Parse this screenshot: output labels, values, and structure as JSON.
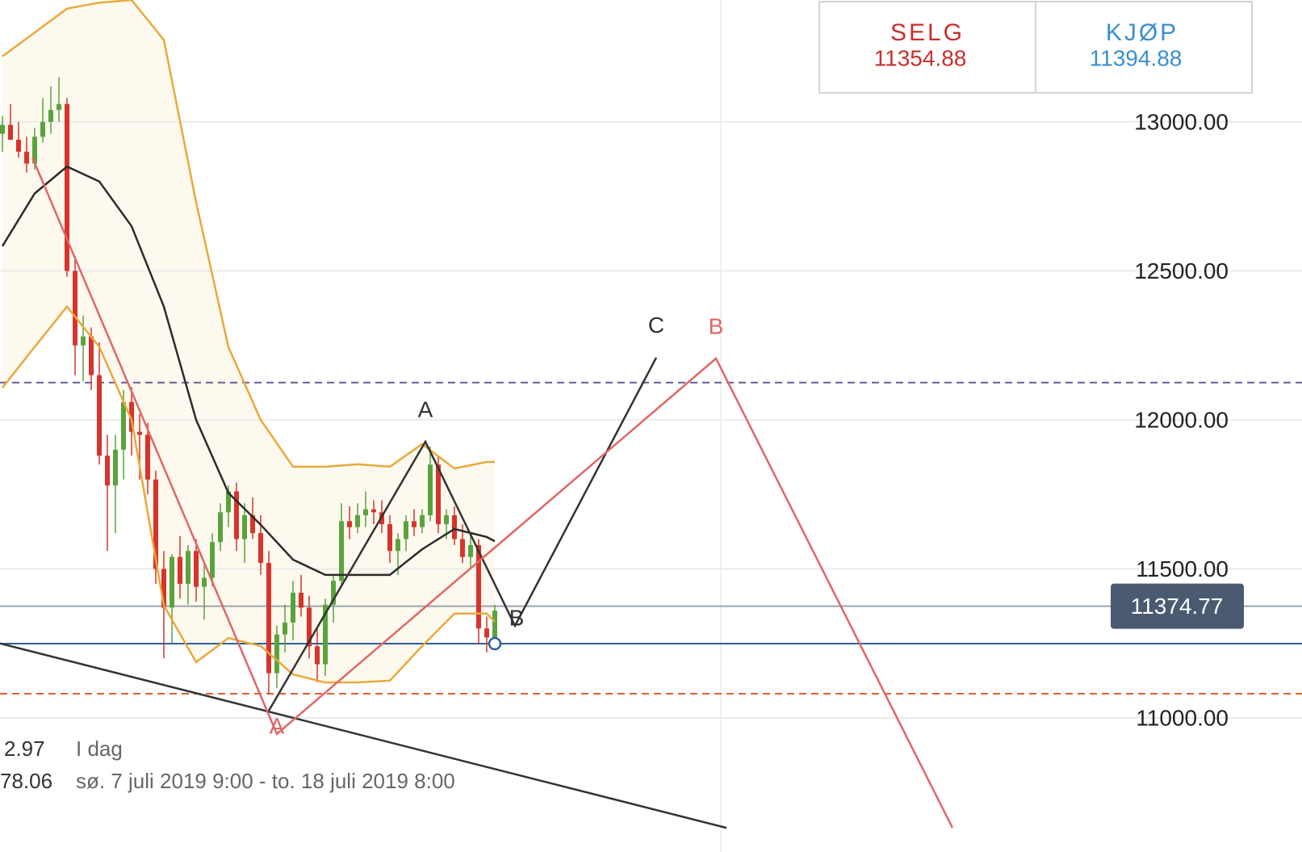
{
  "chart_data": {
    "type": "candlestick",
    "ylim": [
      10550,
      13409
    ],
    "yticks": [
      {
        "value": 13000,
        "label": "13000.00"
      },
      {
        "value": 12500,
        "label": "12500.00"
      },
      {
        "value": 12000,
        "label": "12000.00"
      },
      {
        "value": 11500,
        "label": "11500.00"
      },
      {
        "value": 11000,
        "label": "11000.00"
      }
    ],
    "grid": true,
    "up_color": "#5aa33c",
    "down_color": "#d6342c",
    "candles": [
      [
        12960,
        13020,
        12900,
        12990
      ],
      [
        12990,
        13060,
        12950,
        12940
      ],
      [
        12940,
        13000,
        12880,
        12900
      ],
      [
        12900,
        12950,
        12830,
        12860
      ],
      [
        12860,
        12980,
        12840,
        12950
      ],
      [
        12950,
        13080,
        12930,
        13000
      ],
      [
        13000,
        13120,
        12960,
        13040
      ],
      [
        13040,
        13150,
        13000,
        13060
      ],
      [
        13060,
        13080,
        12480,
        12500
      ],
      [
        12500,
        12550,
        12150,
        12250
      ],
      [
        12250,
        12350,
        12130,
        12280
      ],
      [
        12280,
        12310,
        12100,
        12150
      ],
      [
        12150,
        12260,
        11850,
        11880
      ],
      [
        11880,
        11950,
        11560,
        11780
      ],
      [
        11780,
        11950,
        11620,
        11900
      ],
      [
        11900,
        12100,
        11800,
        12060
      ],
      [
        12060,
        12110,
        11880,
        11960
      ],
      [
        11960,
        12020,
        11800,
        11950
      ],
      [
        11950,
        11990,
        11750,
        11800
      ],
      [
        11800,
        11830,
        11450,
        11500
      ],
      [
        11500,
        11560,
        11200,
        11370
      ],
      [
        11370,
        11550,
        11250,
        11540
      ],
      [
        11540,
        11610,
        11400,
        11450
      ],
      [
        11450,
        11580,
        11380,
        11560
      ],
      [
        11560,
        11600,
        11390,
        11440
      ],
      [
        11440,
        11520,
        11330,
        11470
      ],
      [
        11470,
        11620,
        11440,
        11590
      ],
      [
        11590,
        11720,
        11560,
        11690
      ],
      [
        11690,
        11780,
        11640,
        11760
      ],
      [
        11760,
        11790,
        11560,
        11600
      ],
      [
        11600,
        11720,
        11520,
        11680
      ],
      [
        11680,
        11740,
        11600,
        11620
      ],
      [
        11620,
        11680,
        11480,
        11520
      ],
      [
        11520,
        11560,
        11080,
        11150
      ],
      [
        11150,
        11310,
        11100,
        11280
      ],
      [
        11280,
        11380,
        11220,
        11320
      ],
      [
        11320,
        11460,
        11260,
        11420
      ],
      [
        11420,
        11480,
        11340,
        11370
      ],
      [
        11370,
        11410,
        11200,
        11240
      ],
      [
        11240,
        11300,
        11120,
        11180
      ],
      [
        11180,
        11400,
        11140,
        11380
      ],
      [
        11380,
        11480,
        11320,
        11460
      ],
      [
        11460,
        11720,
        11440,
        11660
      ],
      [
        11660,
        11710,
        11600,
        11640
      ],
      [
        11640,
        11720,
        11620,
        11680
      ],
      [
        11680,
        11760,
        11640,
        11700
      ],
      [
        11700,
        11730,
        11650,
        11690
      ],
      [
        11690,
        11730,
        11620,
        11650
      ],
      [
        11650,
        11680,
        11520,
        11560
      ],
      [
        11560,
        11620,
        11480,
        11600
      ],
      [
        11600,
        11680,
        11560,
        11660
      ],
      [
        11660,
        11700,
        11610,
        11640
      ],
      [
        11640,
        11700,
        11620,
        11680
      ],
      [
        11680,
        11910,
        11660,
        11850
      ],
      [
        11850,
        11880,
        11620,
        11650
      ],
      [
        11650,
        11700,
        11600,
        11680
      ],
      [
        11680,
        11710,
        11580,
        11600
      ],
      [
        11600,
        11650,
        11520,
        11540
      ],
      [
        11540,
        11620,
        11500,
        11580
      ],
      [
        11580,
        11600,
        11250,
        11300
      ],
      [
        11300,
        11340,
        11220,
        11270
      ],
      [
        11270,
        11380,
        11250,
        11360
      ]
    ],
    "overlay_x": [
      0,
      4,
      8,
      12,
      16,
      20,
      24,
      28,
      32,
      36,
      40,
      44,
      48,
      52,
      56,
      60,
      61
    ],
    "overlays": [
      {
        "color": "#e9a93a",
        "values": [
          13220,
          13300,
          13380,
          13400,
          13409,
          13275,
          12730,
          12244,
          12000,
          11843,
          11843,
          11851,
          11843,
          11919,
          11837,
          11859,
          11859
        ]
      },
      {
        "color": "#2b2b2b",
        "values": [
          12583,
          12760,
          12850,
          12800,
          12650,
          12380,
          12000,
          11755,
          11648,
          11531,
          11480,
          11480,
          11480,
          11566,
          11634,
          11607,
          11593
        ]
      },
      {
        "color": "#e9a93a",
        "values": [
          12108,
          12245,
          12380,
          12245,
          12000,
          11377,
          11187,
          11268,
          11241,
          11146,
          11119,
          11119,
          11125,
          11241,
          11350,
          11350,
          11323
        ]
      }
    ],
    "band_fill": "#fdf9ee",
    "levels": [
      {
        "value": 12125,
        "color": "#6b5b95",
        "style": "dashed"
      },
      {
        "value": 11249,
        "color": "#2f5f9a",
        "style": "solid"
      },
      {
        "value": 11081,
        "color": "#e0602a",
        "style": "dashed"
      },
      {
        "value": 11374.77,
        "color": "#9aa3ad",
        "style": "solid"
      }
    ],
    "current_price": 11374.77,
    "drawings": [
      {
        "color": "#333333",
        "x": [
          -0.3,
          89.7
        ],
        "y": [
          11250,
          10631
        ],
        "labels": [
          null,
          null
        ]
      },
      {
        "color": "#333333",
        "x": [
          33,
          52.4,
          63.5,
          81
        ],
        "y": [
          11024,
          11927,
          11309,
          12209
        ],
        "labels": [
          null,
          "A",
          "B",
          "C"
        ]
      },
      {
        "color": "#e06666",
        "x": [
          3.7,
          34,
          88.4,
          117.7
        ],
        "y": [
          12881,
          10946,
          12206,
          10631
        ],
        "labels": [
          null,
          "A",
          "B",
          null
        ]
      }
    ],
    "sell": {
      "label": "SELG",
      "price": 11354.88
    },
    "buy": {
      "label": "KJØP",
      "price": 11394.88
    },
    "info": {
      "left1": "2.97",
      "left2": "78.06",
      "period_label": "I dag",
      "period": "sø. 7 juli 2019 9:00 - to. 18 juli 2019 8:00"
    }
  }
}
